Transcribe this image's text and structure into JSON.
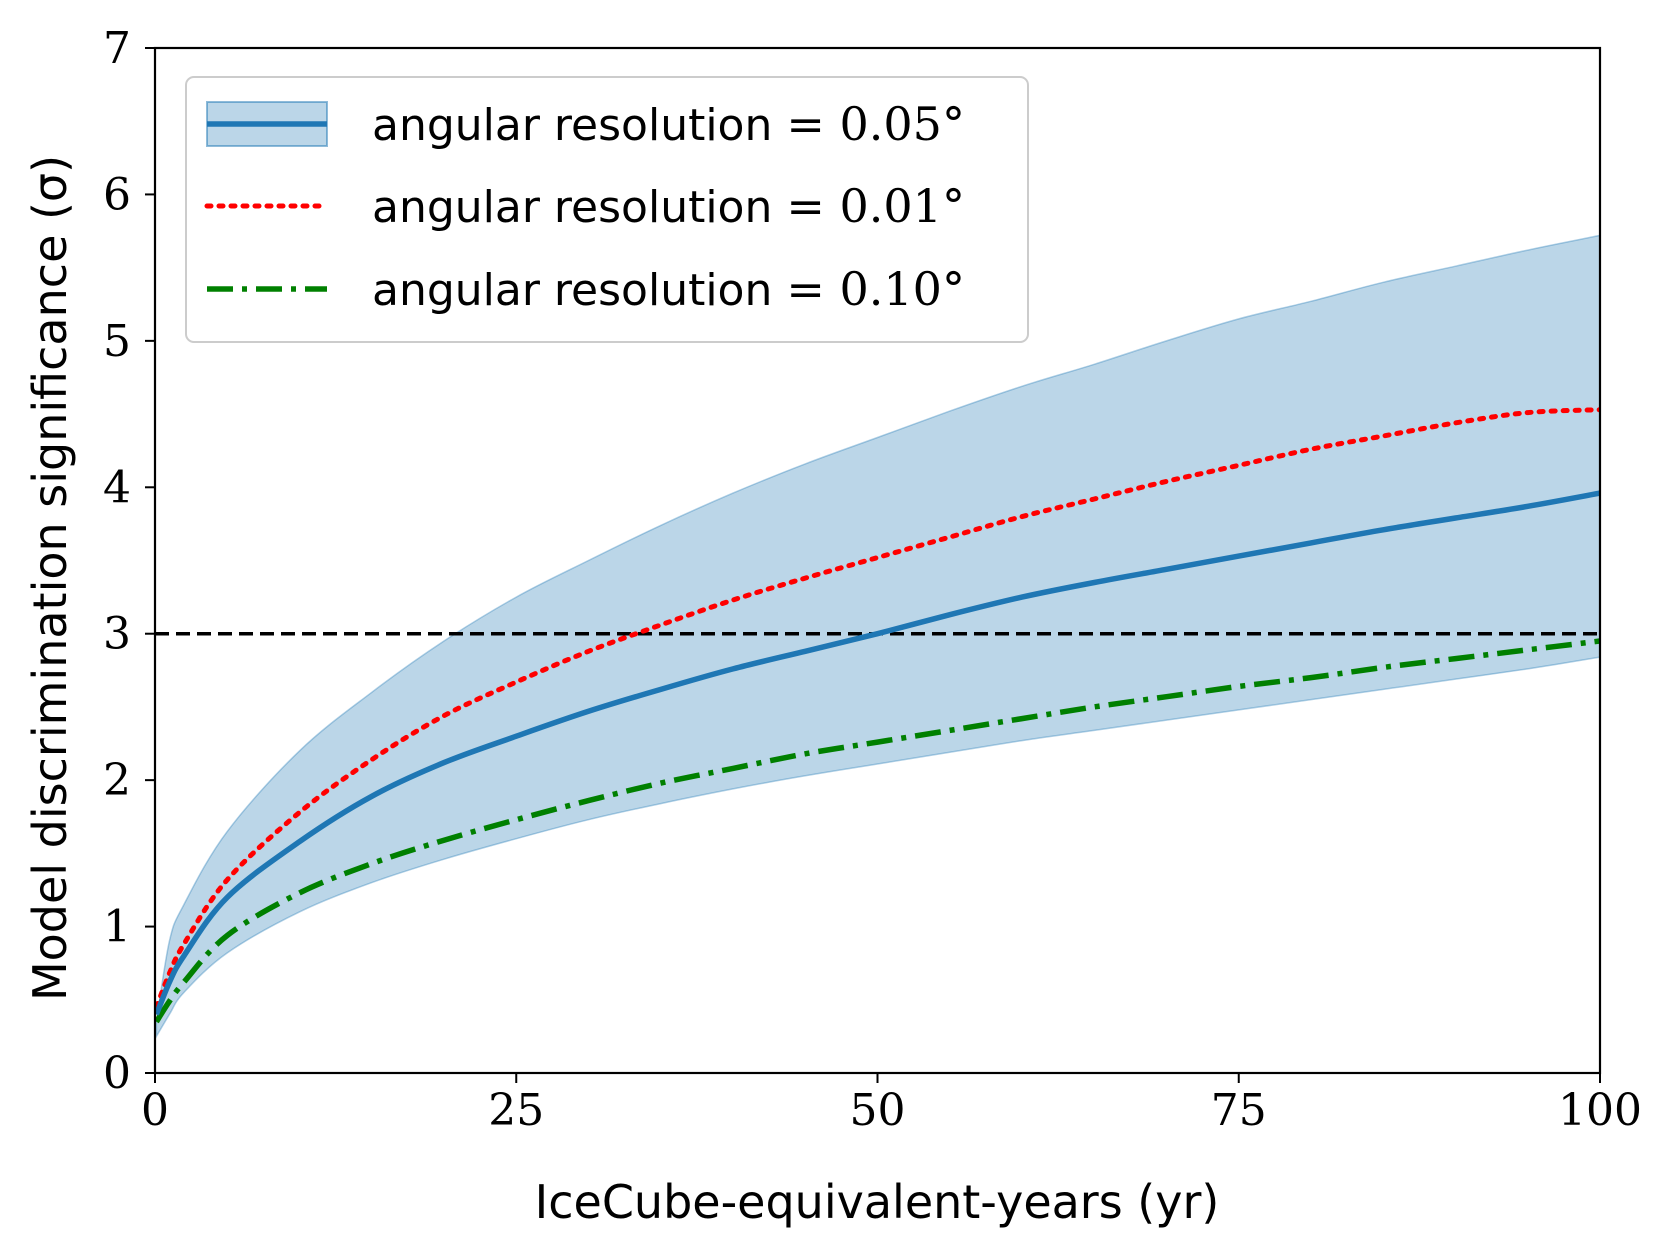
{
  "chart_data": {
    "type": "line",
    "title": "",
    "xlabel": "IceCube-equivalent-years (yr)",
    "ylabel": "Model discrimination significance (σ)",
    "xlim": [
      0,
      100
    ],
    "ylim": [
      0,
      7
    ],
    "xticks": [
      0,
      25,
      50,
      75,
      100
    ],
    "yticks": [
      0,
      1,
      2,
      3,
      4,
      5,
      6,
      7
    ],
    "grid": false,
    "legend_position": "top-left",
    "x": [
      0.1,
      1,
      2,
      5,
      10,
      15,
      20,
      25,
      30,
      35,
      40,
      45,
      50,
      55,
      60,
      65,
      70,
      75,
      80,
      85,
      90,
      95,
      100
    ],
    "band": {
      "series": "angular resolution = 0.05°",
      "color": "#1f77b4",
      "upper": [
        0.35,
        0.9,
        1.15,
        1.65,
        2.2,
        2.6,
        2.95,
        3.25,
        3.5,
        3.74,
        3.96,
        4.16,
        4.34,
        4.52,
        4.69,
        4.84,
        5.0,
        5.15,
        5.27,
        5.4,
        5.51,
        5.62,
        5.72
      ],
      "lower": [
        0.25,
        0.4,
        0.55,
        0.82,
        1.1,
        1.3,
        1.46,
        1.6,
        1.73,
        1.84,
        1.94,
        2.03,
        2.11,
        2.19,
        2.27,
        2.34,
        2.41,
        2.48,
        2.55,
        2.62,
        2.69,
        2.76,
        2.84
      ]
    },
    "series": [
      {
        "name": "angular resolution = 0.05°",
        "color": "#1f77b4",
        "style": "solid",
        "values": [
          0.4,
          0.62,
          0.8,
          1.2,
          1.58,
          1.89,
          2.12,
          2.3,
          2.47,
          2.62,
          2.76,
          2.88,
          3.0,
          3.13,
          3.25,
          3.35,
          3.44,
          3.53,
          3.62,
          3.71,
          3.79,
          3.87,
          3.96
        ]
      },
      {
        "name": "angular resolution = 0.01°",
        "color": "#ff0000",
        "style": "dotted",
        "values": [
          0.45,
          0.68,
          0.88,
          1.32,
          1.78,
          2.14,
          2.44,
          2.67,
          2.88,
          3.06,
          3.23,
          3.38,
          3.52,
          3.66,
          3.8,
          3.92,
          4.04,
          4.15,
          4.26,
          4.35,
          4.44,
          4.51,
          4.53
        ]
      },
      {
        "name": "angular resolution = 0.10°",
        "color": "#008000",
        "style": "dashdot",
        "values": [
          0.35,
          0.49,
          0.62,
          0.94,
          1.23,
          1.43,
          1.59,
          1.73,
          1.86,
          1.98,
          2.08,
          2.18,
          2.26,
          2.34,
          2.42,
          2.5,
          2.57,
          2.64,
          2.7,
          2.77,
          2.83,
          2.89,
          2.95
        ]
      }
    ],
    "reference_line": {
      "y": 3,
      "color": "#000000",
      "style": "dashed"
    },
    "legend": [
      {
        "text": "angular resolution",
        "value": "= 0.05°"
      },
      {
        "text": "angular resolution",
        "value": "= 0.01°"
      },
      {
        "text": "angular resolution",
        "value": "= 0.10°"
      }
    ]
  }
}
